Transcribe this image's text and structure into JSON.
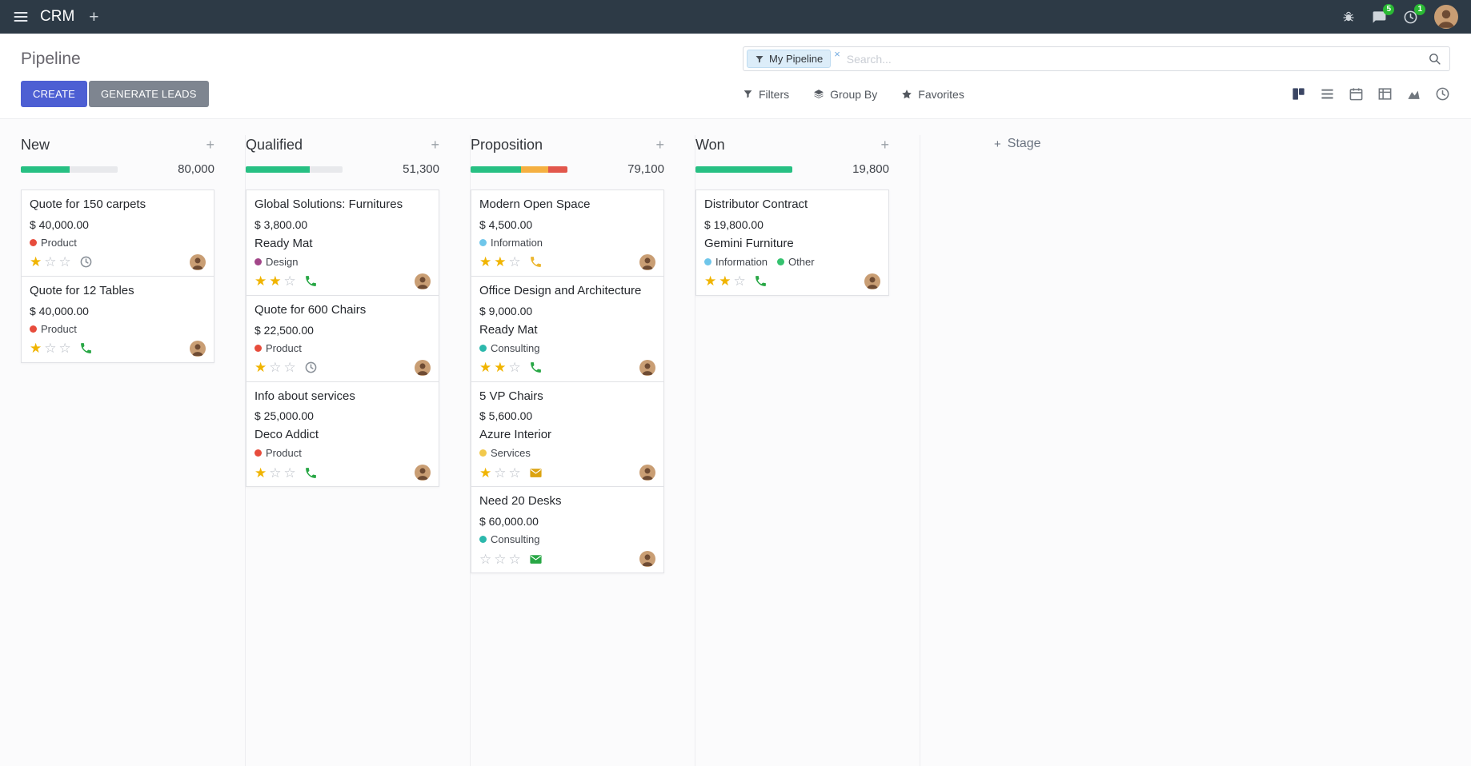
{
  "topbar": {
    "app_name": "CRM",
    "add_label": "+",
    "messages_badge": "5",
    "activities_badge": "1"
  },
  "control_panel": {
    "title": "Pipeline",
    "create_label": "CREATE",
    "generate_leads_label": "GENERATE LEADS",
    "search": {
      "facet_label": "My Pipeline",
      "facet_remove": "×",
      "placeholder": "Search..."
    },
    "menus": {
      "filters": "Filters",
      "group_by": "Group By",
      "favorites": "Favorites"
    }
  },
  "board": {
    "add_stage_plus": "+",
    "add_stage_label": "Stage",
    "add_card_plus": "+",
    "columns": [
      {
        "name": "New",
        "count": "80,000",
        "progress": [
          {
            "color": "#27c083",
            "pct": 50
          }
        ],
        "cards": [
          {
            "title": "Quote for 150 carpets",
            "amount": "$ 40,000.00",
            "tags": [
              {
                "label": "Product",
                "color": "#e74c3c"
              }
            ],
            "stars": 1,
            "activity": {
              "icon": "clock",
              "color": "#8a9199"
            }
          },
          {
            "title": "Quote for 12 Tables",
            "amount": "$ 40,000.00",
            "tags": [
              {
                "label": "Product",
                "color": "#e74c3c"
              }
            ],
            "stars": 1,
            "activity": {
              "icon": "phone",
              "color": "#28a745"
            }
          }
        ]
      },
      {
        "name": "Qualified",
        "count": "51,300",
        "progress": [
          {
            "color": "#27c083",
            "pct": 66
          }
        ],
        "cards": [
          {
            "title": "Global Solutions: Furnitures",
            "amount": "$ 3,800.00",
            "company": "Ready Mat",
            "tags": [
              {
                "label": "Design",
                "color": "#a24689"
              }
            ],
            "stars": 2,
            "activity": {
              "icon": "phone",
              "color": "#28a745"
            }
          },
          {
            "title": "Quote for 600 Chairs",
            "amount": "$ 22,500.00",
            "tags": [
              {
                "label": "Product",
                "color": "#e74c3c"
              }
            ],
            "stars": 1,
            "activity": {
              "icon": "clock",
              "color": "#8a9199"
            }
          },
          {
            "title": "Info about services",
            "amount": "$ 25,000.00",
            "company": "Deco Addict",
            "tags": [
              {
                "label": "Product",
                "color": "#e74c3c"
              }
            ],
            "stars": 1,
            "activity": {
              "icon": "phone",
              "color": "#28a745"
            }
          }
        ]
      },
      {
        "name": "Proposition",
        "count": "79,100",
        "progress": [
          {
            "color": "#27c083",
            "pct": 52
          },
          {
            "color": "#f5b041",
            "pct": 28
          },
          {
            "color": "#e2574c",
            "pct": 20
          }
        ],
        "cards": [
          {
            "title": "Modern Open Space",
            "amount": "$ 4,500.00",
            "tags": [
              {
                "label": "Information",
                "color": "#6fc6ea"
              }
            ],
            "stars": 2,
            "activity": {
              "icon": "phone",
              "color": "#ecb62f"
            }
          },
          {
            "title": "Office Design and Architecture",
            "amount": "$ 9,000.00",
            "company": "Ready Mat",
            "tags": [
              {
                "label": "Consulting",
                "color": "#2cb8ac"
              }
            ],
            "stars": 2,
            "activity": {
              "icon": "phone",
              "color": "#28a745"
            }
          },
          {
            "title": "5 VP Chairs",
            "amount": "$ 5,600.00",
            "company": "Azure Interior",
            "tags": [
              {
                "label": "Services",
                "color": "#f2c94c"
              }
            ],
            "stars": 1,
            "activity": {
              "icon": "mail",
              "color": "#dca311"
            }
          },
          {
            "title": "Need 20 Desks",
            "amount": "$ 60,000.00",
            "tags": [
              {
                "label": "Consulting",
                "color": "#2cb8ac"
              }
            ],
            "stars": 0,
            "activity": {
              "icon": "mail",
              "color": "#28a745"
            }
          }
        ]
      },
      {
        "name": "Won",
        "count": "19,800",
        "progress": [
          {
            "color": "#27c083",
            "pct": 100
          }
        ],
        "cards": [
          {
            "title": "Distributor Contract",
            "amount": "$ 19,800.00",
            "company": "Gemini Furniture",
            "tags": [
              {
                "label": "Information",
                "color": "#6fc6ea"
              },
              {
                "label": "Other",
                "color": "#35c26f"
              }
            ],
            "stars": 2,
            "activity": {
              "icon": "phone",
              "color": "#28a745"
            }
          }
        ]
      }
    ]
  },
  "colors": {
    "topbar_bg": "#2d3a46",
    "primary": "#4d5fd3",
    "secondary_button": "#7e8590",
    "progress_green": "#27c083",
    "progress_yellow": "#f5b041",
    "progress_red": "#e2574c",
    "progress_track": "#e8e9ec",
    "star_on": "#f0b400",
    "star_off": "#b9bec6",
    "badge_green": "#2ab934",
    "facet_bg": "#dcedf9"
  }
}
